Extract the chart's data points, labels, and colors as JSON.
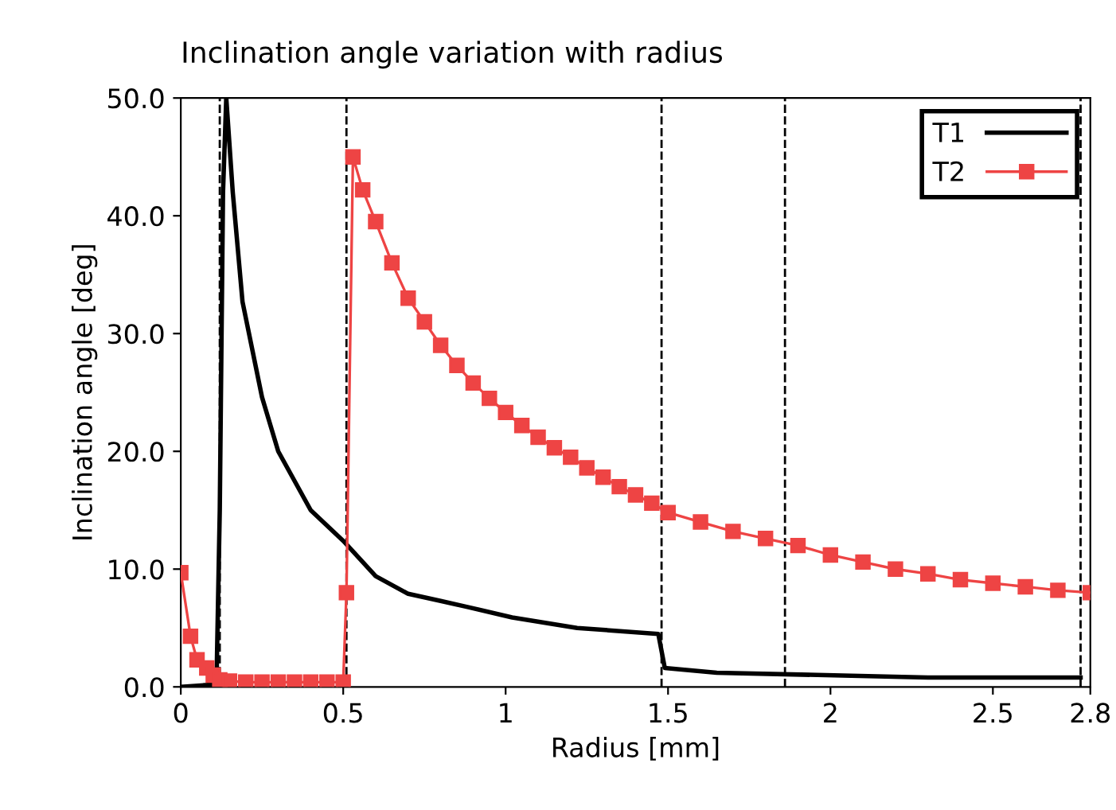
{
  "chart_data": {
    "type": "line",
    "title": "Inclination angle variation with radius",
    "xlabel": "Radius [mm]",
    "ylabel": "Inclination angle [deg]",
    "xlim": [
      0,
      2.8
    ],
    "ylim": [
      0,
      50
    ],
    "xticks": [
      0,
      0.5,
      1,
      1.5,
      2,
      2.5,
      2.8
    ],
    "yticks": [
      {
        "value": 0,
        "label": "0.0"
      },
      {
        "value": 10,
        "label": "10.0"
      },
      {
        "value": 20,
        "label": "20.0"
      },
      {
        "value": 30,
        "label": "30.0"
      },
      {
        "value": 40,
        "label": "40.0"
      },
      {
        "value": 50,
        "label": "50.0"
      }
    ],
    "grid": false,
    "legend": "top right",
    "ref_lines": [
      {
        "axis": "x",
        "value": 0.12,
        "line_style": "dashed",
        "color": "#000000"
      },
      {
        "axis": "x",
        "value": 0.51,
        "line_style": "dashed",
        "color": "#000000"
      },
      {
        "axis": "x",
        "value": 1.48,
        "line_style": "dashed",
        "color": "#000000"
      },
      {
        "axis": "x",
        "value": 1.86,
        "line_style": "dashed",
        "color": "#000000"
      },
      {
        "axis": "x",
        "value": 2.77,
        "line_style": "dashed",
        "color": "#000000"
      }
    ],
    "series": [
      {
        "name": "T1",
        "color": "#000000",
        "marker": "none",
        "x": [
          0,
          0.1,
          0.11,
          0.12,
          0.13,
          0.14,
          0.16,
          0.19,
          0.25,
          0.3,
          0.4,
          0.5,
          0.6,
          0.7,
          0.8,
          0.88,
          1.02,
          1.22,
          1.47,
          1.49,
          1.65,
          2.3,
          2.77
        ],
        "values": [
          0,
          0.2,
          0.5,
          15,
          42,
          50,
          42,
          32.7,
          24.6,
          20,
          15,
          12.4,
          9.4,
          7.9,
          7.3,
          6.8,
          5.9,
          5.0,
          4.5,
          1.6,
          1.2,
          0.8,
          0.8
        ]
      },
      {
        "name": "T2",
        "color": "#ee4444",
        "marker": "square",
        "x": [
          0,
          0.03,
          0.05,
          0.08,
          0.1,
          0.12,
          0.15,
          0.2,
          0.25,
          0.3,
          0.35,
          0.4,
          0.45,
          0.5,
          0.51,
          0.53,
          0.56,
          0.6,
          0.65,
          0.7,
          0.75,
          0.8,
          0.85,
          0.9,
          0.95,
          1.0,
          1.05,
          1.1,
          1.15,
          1.2,
          1.25,
          1.3,
          1.35,
          1.4,
          1.45,
          1.5,
          1.6,
          1.7,
          1.8,
          1.9,
          2.0,
          2.1,
          2.2,
          2.3,
          2.4,
          2.5,
          2.6,
          2.7,
          2.8
        ],
        "values": [
          9.7,
          4.3,
          2.3,
          1.6,
          1.0,
          0.6,
          0.5,
          0.4,
          0.4,
          0.4,
          0.4,
          0.4,
          0.4,
          0.4,
          8,
          45,
          42.2,
          39.5,
          36,
          33,
          31,
          29,
          27.3,
          25.8,
          24.5,
          23.3,
          22.2,
          21.2,
          20.3,
          19.5,
          18.6,
          17.8,
          17,
          16.3,
          15.6,
          14.8,
          14,
          13.2,
          12.6,
          12.0,
          11.2,
          10.6,
          10.0,
          9.6,
          9.1,
          8.8,
          8.5,
          8.2,
          8.0
        ]
      }
    ]
  }
}
